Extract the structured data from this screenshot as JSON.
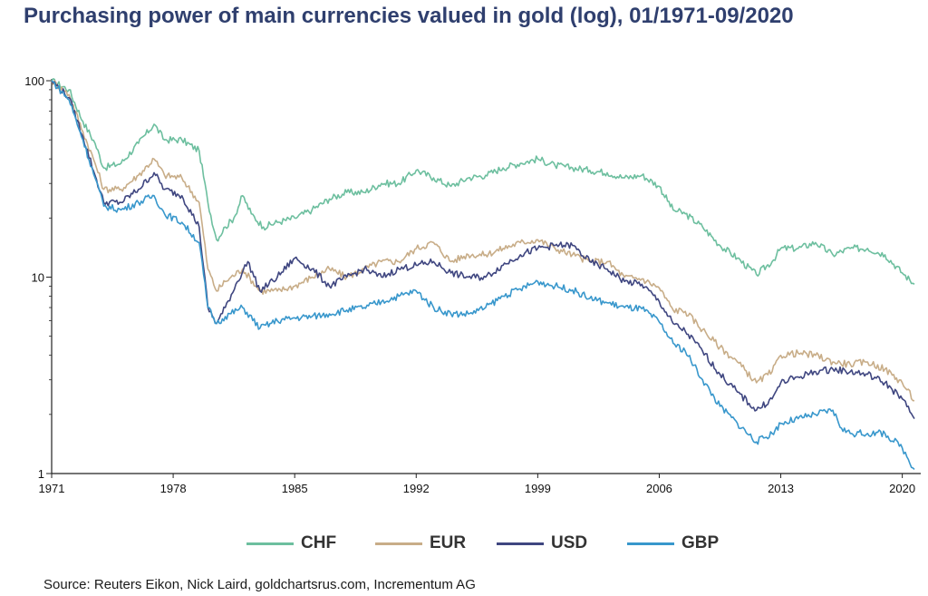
{
  "chart_data": {
    "type": "line",
    "title": "Purchasing power of main currencies valued in gold (log), 01/1971-09/2020",
    "source": "Source: Reuters Eikon, Nick Laird, goldchartsrus.com, Incrementum AG",
    "yscale": "log",
    "ylim": [
      1,
      100
    ],
    "xlim": [
      1971,
      2020.75
    ],
    "y_ticks": [
      1,
      10,
      100
    ],
    "y_tick_labels": [
      "1",
      "10",
      "100"
    ],
    "x_ticks": [
      1971,
      1978,
      1985,
      1992,
      1999,
      2006,
      2013,
      2020
    ],
    "x_tick_labels": [
      "1971",
      "1978",
      "1985",
      "1992",
      "1999",
      "2006",
      "2013",
      "2020"
    ],
    "grid": false,
    "legend_position": "bottom",
    "series": [
      {
        "name": "CHF",
        "color": "#6dbf9f",
        "points": [
          [
            1971,
            100
          ],
          [
            1972,
            90
          ],
          [
            1972.8,
            62
          ],
          [
            1973.5,
            48
          ],
          [
            1974,
            36
          ],
          [
            1975,
            38
          ],
          [
            1976,
            48
          ],
          [
            1976.9,
            60
          ],
          [
            1977.5,
            50
          ],
          [
            1978.5,
            50
          ],
          [
            1979.5,
            44
          ],
          [
            1980,
            24
          ],
          [
            1980.5,
            15.5
          ],
          [
            1981,
            18
          ],
          [
            1981.5,
            20
          ],
          [
            1982,
            26
          ],
          [
            1982.5,
            21
          ],
          [
            1983.2,
            18
          ],
          [
            1984,
            19
          ],
          [
            1985,
            20
          ],
          [
            1986,
            22
          ],
          [
            1987,
            25
          ],
          [
            1988,
            27
          ],
          [
            1989,
            27
          ],
          [
            1990,
            30
          ],
          [
            1991,
            30
          ],
          [
            1992,
            35
          ],
          [
            1993,
            32
          ],
          [
            1994,
            29
          ],
          [
            1995,
            32
          ],
          [
            1996,
            33
          ],
          [
            1997,
            36
          ],
          [
            1998,
            38
          ],
          [
            1999,
            40
          ],
          [
            2000,
            37
          ],
          [
            2001,
            36
          ],
          [
            2002,
            35
          ],
          [
            2003,
            34
          ],
          [
            2004,
            32
          ],
          [
            2005,
            33
          ],
          [
            2006,
            29
          ],
          [
            2006.8,
            22
          ],
          [
            2007.5,
            21
          ],
          [
            2008.5,
            18
          ],
          [
            2009.5,
            14.5
          ],
          [
            2010.5,
            12.5
          ],
          [
            2011.6,
            10.3
          ],
          [
            2012.5,
            12
          ],
          [
            2013,
            14
          ],
          [
            2014,
            14
          ],
          [
            2015,
            15
          ],
          [
            2016,
            13
          ],
          [
            2017,
            14
          ],
          [
            2018,
            14
          ],
          [
            2019,
            13
          ],
          [
            2020,
            10.5
          ],
          [
            2020.7,
            9.2
          ]
        ]
      },
      {
        "name": "EUR",
        "color": "#c8ad88",
        "points": [
          [
            1971,
            100
          ],
          [
            1972,
            85
          ],
          [
            1972.8,
            55
          ],
          [
            1973.5,
            38
          ],
          [
            1974,
            28
          ],
          [
            1975,
            28
          ],
          [
            1976,
            33
          ],
          [
            1976.9,
            40
          ],
          [
            1977.5,
            33
          ],
          [
            1978.5,
            32
          ],
          [
            1979.5,
            24
          ],
          [
            1980,
            11
          ],
          [
            1980.5,
            8.5
          ],
          [
            1981,
            9.5
          ],
          [
            1982,
            11
          ],
          [
            1983,
            8.5
          ],
          [
            1984,
            8.5
          ],
          [
            1985,
            9
          ],
          [
            1986,
            10
          ],
          [
            1987,
            11
          ],
          [
            1988,
            10
          ],
          [
            1989,
            11
          ],
          [
            1990,
            12
          ],
          [
            1991,
            12
          ],
          [
            1992,
            14
          ],
          [
            1993,
            15
          ],
          [
            1994,
            12
          ],
          [
            1995,
            13
          ],
          [
            1996,
            13
          ],
          [
            1997,
            14
          ],
          [
            1998,
            15
          ],
          [
            1999,
            15.5
          ],
          [
            2000,
            14
          ],
          [
            2001,
            13
          ],
          [
            2002,
            12
          ],
          [
            2003,
            12
          ],
          [
            2004,
            10
          ],
          [
            2005,
            9.8
          ],
          [
            2006,
            8.8
          ],
          [
            2006.8,
            6.8
          ],
          [
            2007.5,
            6.7
          ],
          [
            2008.5,
            5.4
          ],
          [
            2009.5,
            4.4
          ],
          [
            2010.5,
            3.7
          ],
          [
            2011.6,
            2.9
          ],
          [
            2012.5,
            3.3
          ],
          [
            2013,
            4
          ],
          [
            2014,
            4.1
          ],
          [
            2015,
            4
          ],
          [
            2016,
            3.7
          ],
          [
            2017,
            3.6
          ],
          [
            2018,
            3.7
          ],
          [
            2019,
            3.4
          ],
          [
            2020,
            2.9
          ],
          [
            2020.7,
            2.35
          ]
        ]
      },
      {
        "name": "USD",
        "color": "#3f4680",
        "points": [
          [
            1971,
            100
          ],
          [
            1972,
            82
          ],
          [
            1972.8,
            52
          ],
          [
            1973.5,
            33
          ],
          [
            1974,
            24
          ],
          [
            1975,
            24
          ],
          [
            1976,
            28
          ],
          [
            1976.9,
            34
          ],
          [
            1977.5,
            28
          ],
          [
            1978.5,
            26
          ],
          [
            1979.5,
            18
          ],
          [
            1980,
            7
          ],
          [
            1980.5,
            5.8
          ],
          [
            1981,
            7
          ],
          [
            1981.7,
            9.5
          ],
          [
            1982.3,
            12
          ],
          [
            1983,
            8.5
          ],
          [
            1984,
            10
          ],
          [
            1985,
            12.5
          ],
          [
            1986,
            11
          ],
          [
            1987,
            9
          ],
          [
            1988,
            10
          ],
          [
            1989,
            11
          ],
          [
            1990,
            10
          ],
          [
            1991,
            11
          ],
          [
            1992,
            11.5
          ],
          [
            1993,
            12
          ],
          [
            1994,
            10.5
          ],
          [
            1995,
            10
          ],
          [
            1996,
            10
          ],
          [
            1997,
            11.5
          ],
          [
            1998,
            13
          ],
          [
            1999,
            14
          ],
          [
            2000,
            14.5
          ],
          [
            2001,
            14.5
          ],
          [
            2002,
            12
          ],
          [
            2003,
            11
          ],
          [
            2004,
            9.5
          ],
          [
            2005,
            9.2
          ],
          [
            2006,
            7.5
          ],
          [
            2006.8,
            5.8
          ],
          [
            2007.5,
            5.3
          ],
          [
            2008.5,
            4.2
          ],
          [
            2009.5,
            3.2
          ],
          [
            2010.5,
            2.6
          ],
          [
            2011.6,
            2.1
          ],
          [
            2012.5,
            2.4
          ],
          [
            2013,
            2.9
          ],
          [
            2014,
            3.1
          ],
          [
            2015,
            3.3
          ],
          [
            2016,
            3.4
          ],
          [
            2017,
            3.3
          ],
          [
            2018,
            3.2
          ],
          [
            2019,
            2.9
          ],
          [
            2020,
            2.4
          ],
          [
            2020.7,
            1.9
          ]
        ]
      },
      {
        "name": "GBP",
        "color": "#3897cc",
        "points": [
          [
            1971,
            100
          ],
          [
            1972,
            80
          ],
          [
            1972.8,
            50
          ],
          [
            1973.5,
            32
          ],
          [
            1974,
            23
          ],
          [
            1975,
            22
          ],
          [
            1976,
            24
          ],
          [
            1976.9,
            26
          ],
          [
            1977.5,
            21
          ],
          [
            1978.5,
            19
          ],
          [
            1979.5,
            15
          ],
          [
            1980,
            7
          ],
          [
            1980.5,
            5.8
          ],
          [
            1981,
            6.3
          ],
          [
            1982,
            7
          ],
          [
            1983,
            5.5
          ],
          [
            1984,
            6
          ],
          [
            1985,
            6.2
          ],
          [
            1986,
            6.3
          ],
          [
            1987,
            6.5
          ],
          [
            1988,
            6.8
          ],
          [
            1989,
            7
          ],
          [
            1990,
            7.5
          ],
          [
            1991,
            8
          ],
          [
            1992,
            8.5
          ],
          [
            1993,
            7
          ],
          [
            1994,
            6.5
          ],
          [
            1995,
            6.5
          ],
          [
            1996,
            7
          ],
          [
            1997,
            8
          ],
          [
            1998,
            8.7
          ],
          [
            1999,
            9.5
          ],
          [
            2000,
            9
          ],
          [
            2001,
            8.6
          ],
          [
            2002,
            7.8
          ],
          [
            2003,
            7.4
          ],
          [
            2004,
            7
          ],
          [
            2005,
            6.9
          ],
          [
            2006,
            5.9
          ],
          [
            2006.8,
            4.6
          ],
          [
            2007.5,
            4.2
          ],
          [
            2008.5,
            3
          ],
          [
            2009.5,
            2.2
          ],
          [
            2010.5,
            1.8
          ],
          [
            2011.6,
            1.45
          ],
          [
            2012.5,
            1.6
          ],
          [
            2013,
            1.8
          ],
          [
            2014,
            1.9
          ],
          [
            2015,
            2
          ],
          [
            2016,
            2.1
          ],
          [
            2016.5,
            1.7
          ],
          [
            2017,
            1.6
          ],
          [
            2018,
            1.6
          ],
          [
            2019,
            1.6
          ],
          [
            2020,
            1.35
          ],
          [
            2020.7,
            1.05
          ]
        ]
      }
    ]
  }
}
